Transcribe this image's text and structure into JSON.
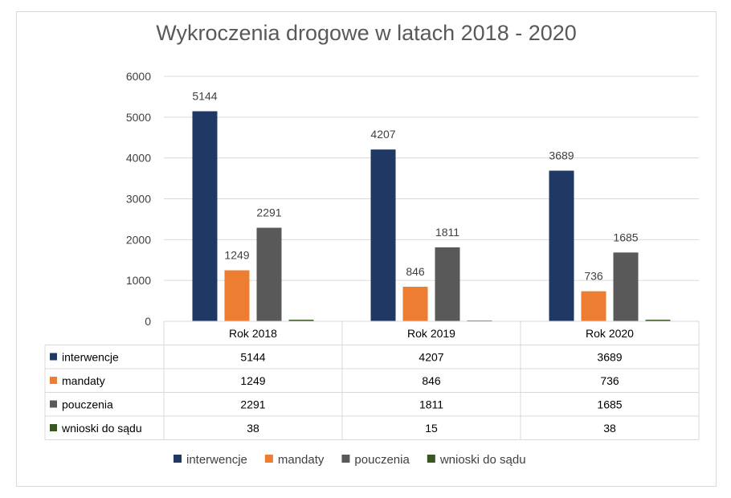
{
  "chart_data": {
    "type": "bar",
    "title": "Wykroczenia drogowe w latach 2018 - 2020",
    "categories": [
      "Rok 2018",
      "Rok 2019",
      "Rok 2020"
    ],
    "series": [
      {
        "name": "interwencje",
        "color": "#203864",
        "values": [
          5144,
          4207,
          3689
        ]
      },
      {
        "name": "mandaty",
        "color": "#ed7d31",
        "values": [
          1249,
          846,
          736
        ]
      },
      {
        "name": "pouczenia",
        "color": "#595959",
        "values": [
          2291,
          1811,
          1685
        ]
      },
      {
        "name": "wnioski do sądu",
        "color": "#375623",
        "values": [
          38,
          15,
          38
        ]
      }
    ],
    "ylim": [
      0,
      6000
    ],
    "yticks": [
      "0",
      "1000",
      "2000",
      "3000",
      "4000",
      "5000",
      "6000"
    ],
    "data_labels": [
      "interwencje",
      "mandaty",
      "pouczenia"
    ],
    "grid": true,
    "legend": "bottom",
    "data_table": true
  }
}
